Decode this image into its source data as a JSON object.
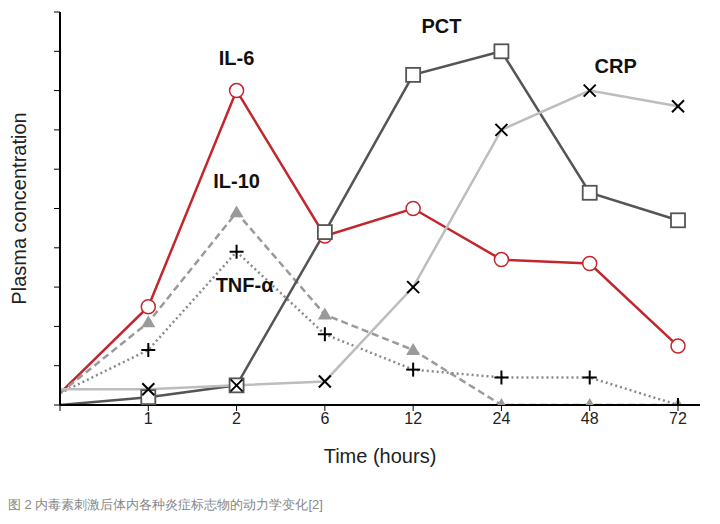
{
  "chart_data": {
    "type": "line",
    "x_label": "Time (hours)",
    "y_label": "Plasma concentration",
    "caption": "图 2 内毒素刺激后体内各种炎症标志物的动力学变化[2]",
    "categories": [
      null,
      "1",
      "2",
      "6",
      "12",
      "24",
      "48",
      "72"
    ],
    "ylim": [
      0,
      10
    ],
    "yticks": [
      0,
      1,
      2,
      3,
      4,
      5,
      6,
      7,
      8,
      9,
      10
    ],
    "tick_labels": "x",
    "grid": false,
    "series": [
      {
        "name": "IL-6",
        "color": "#c1272d",
        "marker": "circle",
        "line_style": "solid",
        "values": [
          0.3,
          2.5,
          8.0,
          4.3,
          5.0,
          3.7,
          3.6,
          1.5
        ]
      },
      {
        "name": "IL-10",
        "color": "#9a9a9a",
        "marker": "triangle",
        "line_style": "dashed",
        "values": [
          0.3,
          2.1,
          4.9,
          2.3,
          1.4,
          0,
          0,
          0
        ]
      },
      {
        "name": "TNF-α",
        "color": "#8a8a8a",
        "marker": "plus",
        "line_style": "dotted",
        "values": [
          0.3,
          1.4,
          3.9,
          1.8,
          0.9,
          0.7,
          0.7,
          0
        ]
      },
      {
        "name": "PCT",
        "color": "#555555",
        "marker": "square",
        "line_style": "solid",
        "values": [
          0,
          0.2,
          0.5,
          4.4,
          8.4,
          9.0,
          5.4,
          4.7
        ]
      },
      {
        "name": "CRP",
        "color": "#bdbdbd",
        "marker": "x",
        "line_style": "solid",
        "values": [
          0.4,
          0.4,
          0.5,
          0.6,
          3.0,
          7.0,
          8.0,
          7.6
        ]
      }
    ]
  }
}
